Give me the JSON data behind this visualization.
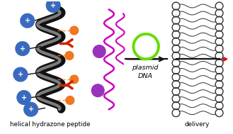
{
  "label_left": "helical hydrazone peptide",
  "label_right": "delivery",
  "label_plasmid1": "plasmid",
  "label_plasmid2": "DNA",
  "bg_color": "#ffffff",
  "helix_color": "#111111",
  "blue_color": "#3a6abf",
  "orange_color": "#f07820",
  "red_color": "#cc2200",
  "purple_color": "#9933bb",
  "magenta_color": "#cc00bb",
  "green_color": "#66dd00",
  "arrow_color": "#111111",
  "red_arrow_color": "#dd1111",
  "membrane_color": "#333333",
  "figw": 3.29,
  "figh": 1.89,
  "dpi": 100
}
